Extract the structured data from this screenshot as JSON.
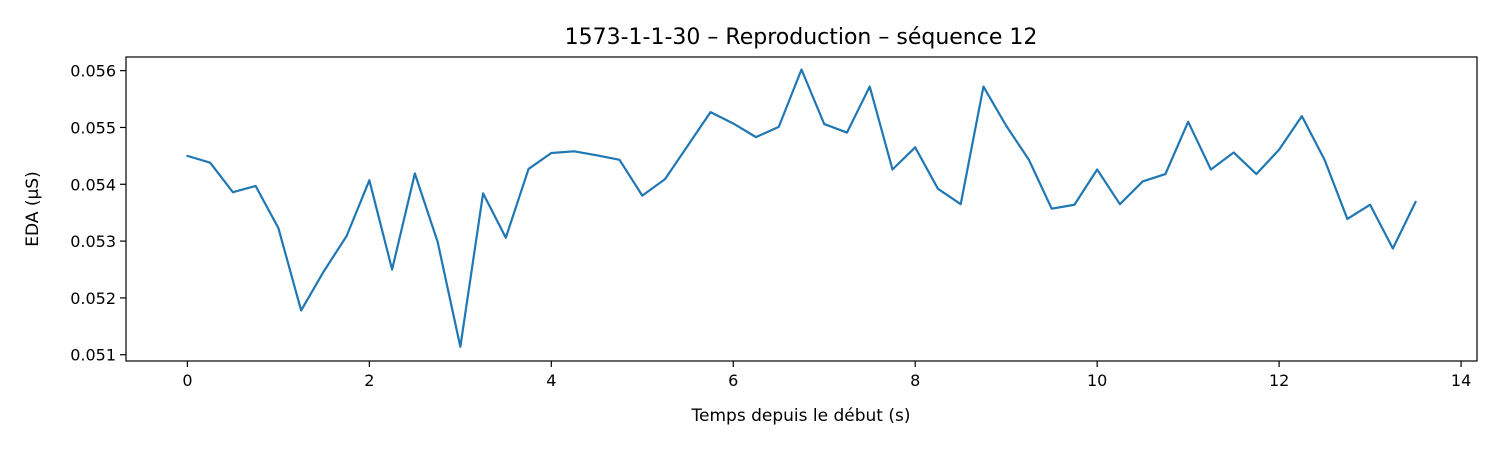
{
  "chart_data": {
    "type": "line",
    "title": "1573-1-1-30 – Reproduction – séquence 12",
    "xlabel": "Temps depuis le début (s)",
    "ylabel": "EDA (µS)",
    "xlim": [
      -0.675,
      14.175
    ],
    "ylim": [
      0.05089,
      0.05624
    ],
    "xticks": [
      0,
      2,
      4,
      6,
      8,
      10,
      12,
      14
    ],
    "xtick_labels": [
      "0",
      "2",
      "4",
      "6",
      "8",
      "10",
      "12",
      "14"
    ],
    "yticks": [
      0.051,
      0.052,
      0.053,
      0.054,
      0.055,
      0.056
    ],
    "ytick_labels": [
      "0.051",
      "0.052",
      "0.053",
      "0.054",
      "0.055",
      "0.056"
    ],
    "grid": false,
    "legend": "none",
    "series": [
      {
        "color": "#1f77b4",
        "x": [
          0,
          0.25,
          0.5,
          0.75,
          1.0,
          1.25,
          1.5,
          1.75,
          2.0,
          2.25,
          2.5,
          2.75,
          3.0,
          3.25,
          3.5,
          3.75,
          4.0,
          4.25,
          4.5,
          4.75,
          5.0,
          5.25,
          5.5,
          5.75,
          6.0,
          6.25,
          6.5,
          6.75,
          7.0,
          7.25,
          7.5,
          7.75,
          8.0,
          8.25,
          8.5,
          8.75,
          9.0,
          9.25,
          9.5,
          9.75,
          10.0,
          10.25,
          10.5,
          10.75,
          11.0,
          11.25,
          11.5,
          11.75,
          12.0,
          12.25,
          12.5,
          12.75,
          13.0,
          13.25,
          13.5
        ],
        "y": [
          0.0545,
          0.05438,
          0.05386,
          0.05397,
          0.05323,
          0.05178,
          0.05247,
          0.05309,
          0.05407,
          0.0525,
          0.05419,
          0.05299,
          0.05114,
          0.05384,
          0.05306,
          0.05427,
          0.05455,
          0.05458,
          0.05451,
          0.05443,
          0.0538,
          0.05409,
          0.05468,
          0.05527,
          0.05507,
          0.05483,
          0.05501,
          0.05602,
          0.05506,
          0.05491,
          0.05572,
          0.05426,
          0.05465,
          0.05392,
          0.05365,
          0.05572,
          0.05503,
          0.05443,
          0.05357,
          0.05364,
          0.05426,
          0.05365,
          0.05405,
          0.05418,
          0.0551,
          0.05426,
          0.05456,
          0.05418,
          0.05461,
          0.0552,
          0.05443,
          0.05339,
          0.05364,
          0.05287,
          0.05369
        ]
      }
    ]
  }
}
